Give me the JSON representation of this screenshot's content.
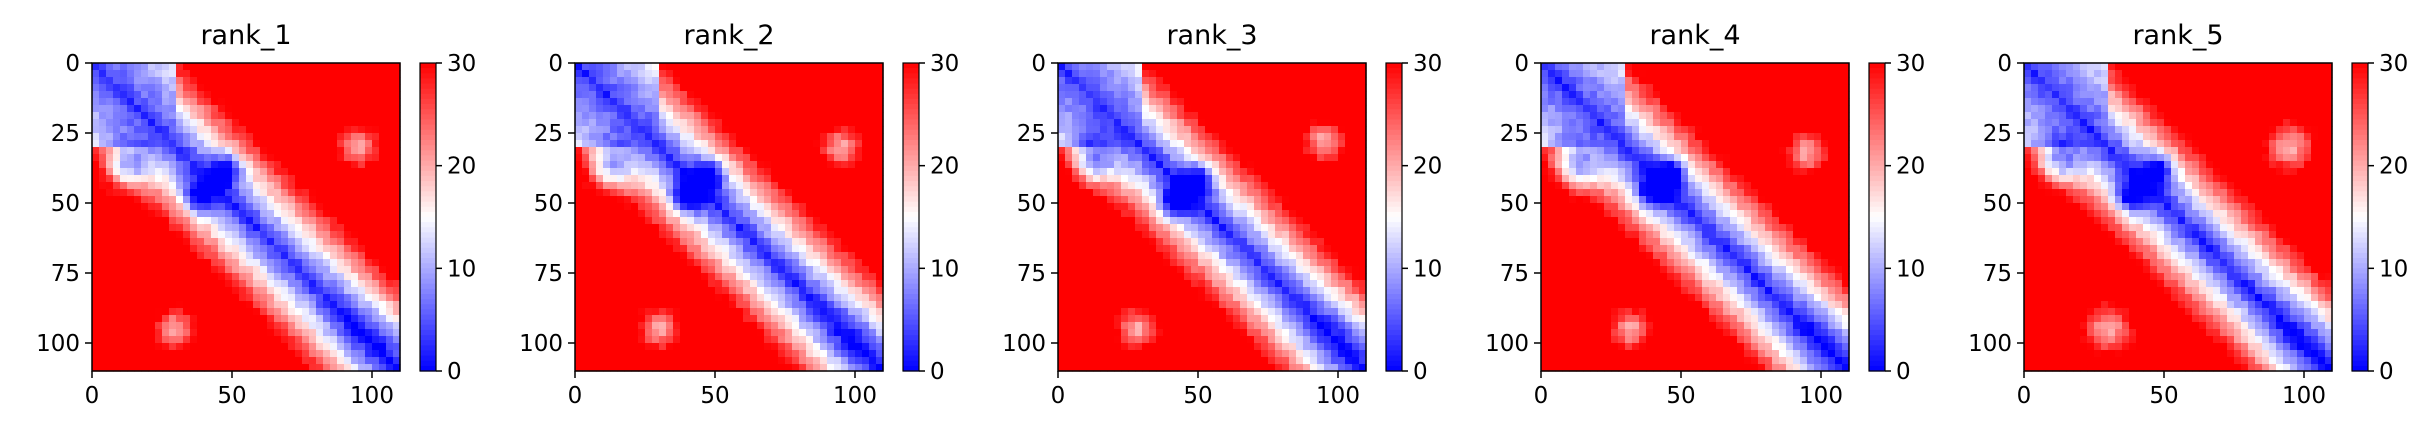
{
  "chart_data": {
    "type": "heatmap",
    "colormap": "bwr",
    "color_range": [
      0,
      30
    ],
    "colorbar_ticks": [
      0,
      10,
      20,
      30
    ],
    "x_range": [
      0,
      110
    ],
    "y_range": [
      110,
      0
    ],
    "x_ticks": [
      0,
      50,
      100
    ],
    "y_ticks": [
      0,
      25,
      50,
      75,
      100
    ],
    "grid": false,
    "panels": [
      {
        "title": "rank_1",
        "note_blobs": [
          [
            12,
            38,
            6
          ],
          [
            95,
            30,
            5
          ],
          [
            30,
            95,
            5
          ],
          [
            38,
            48,
            4
          ],
          [
            48,
            38,
            4
          ]
        ]
      },
      {
        "title": "rank_2",
        "note_blobs": [
          [
            12,
            38,
            6
          ],
          [
            95,
            30,
            5
          ],
          [
            30,
            95,
            5
          ],
          [
            40,
            48,
            4
          ],
          [
            48,
            40,
            4
          ]
        ]
      },
      {
        "title": "rank_3",
        "note_blobs": [
          [
            12,
            36,
            6
          ],
          [
            95,
            28,
            5
          ],
          [
            28,
            95,
            5
          ],
          [
            42,
            50,
            4
          ],
          [
            50,
            42,
            4
          ]
        ]
      },
      {
        "title": "rank_4",
        "note_blobs": [
          [
            12,
            38,
            6
          ],
          [
            95,
            32,
            5
          ],
          [
            32,
            95,
            5
          ],
          [
            40,
            46,
            4
          ],
          [
            46,
            40,
            4
          ]
        ]
      },
      {
        "title": "rank_5",
        "note_blobs": [
          [
            12,
            36,
            6
          ],
          [
            95,
            30,
            6
          ],
          [
            30,
            95,
            6
          ],
          [
            38,
            48,
            4
          ],
          [
            48,
            38,
            4
          ]
        ]
      }
    ]
  }
}
